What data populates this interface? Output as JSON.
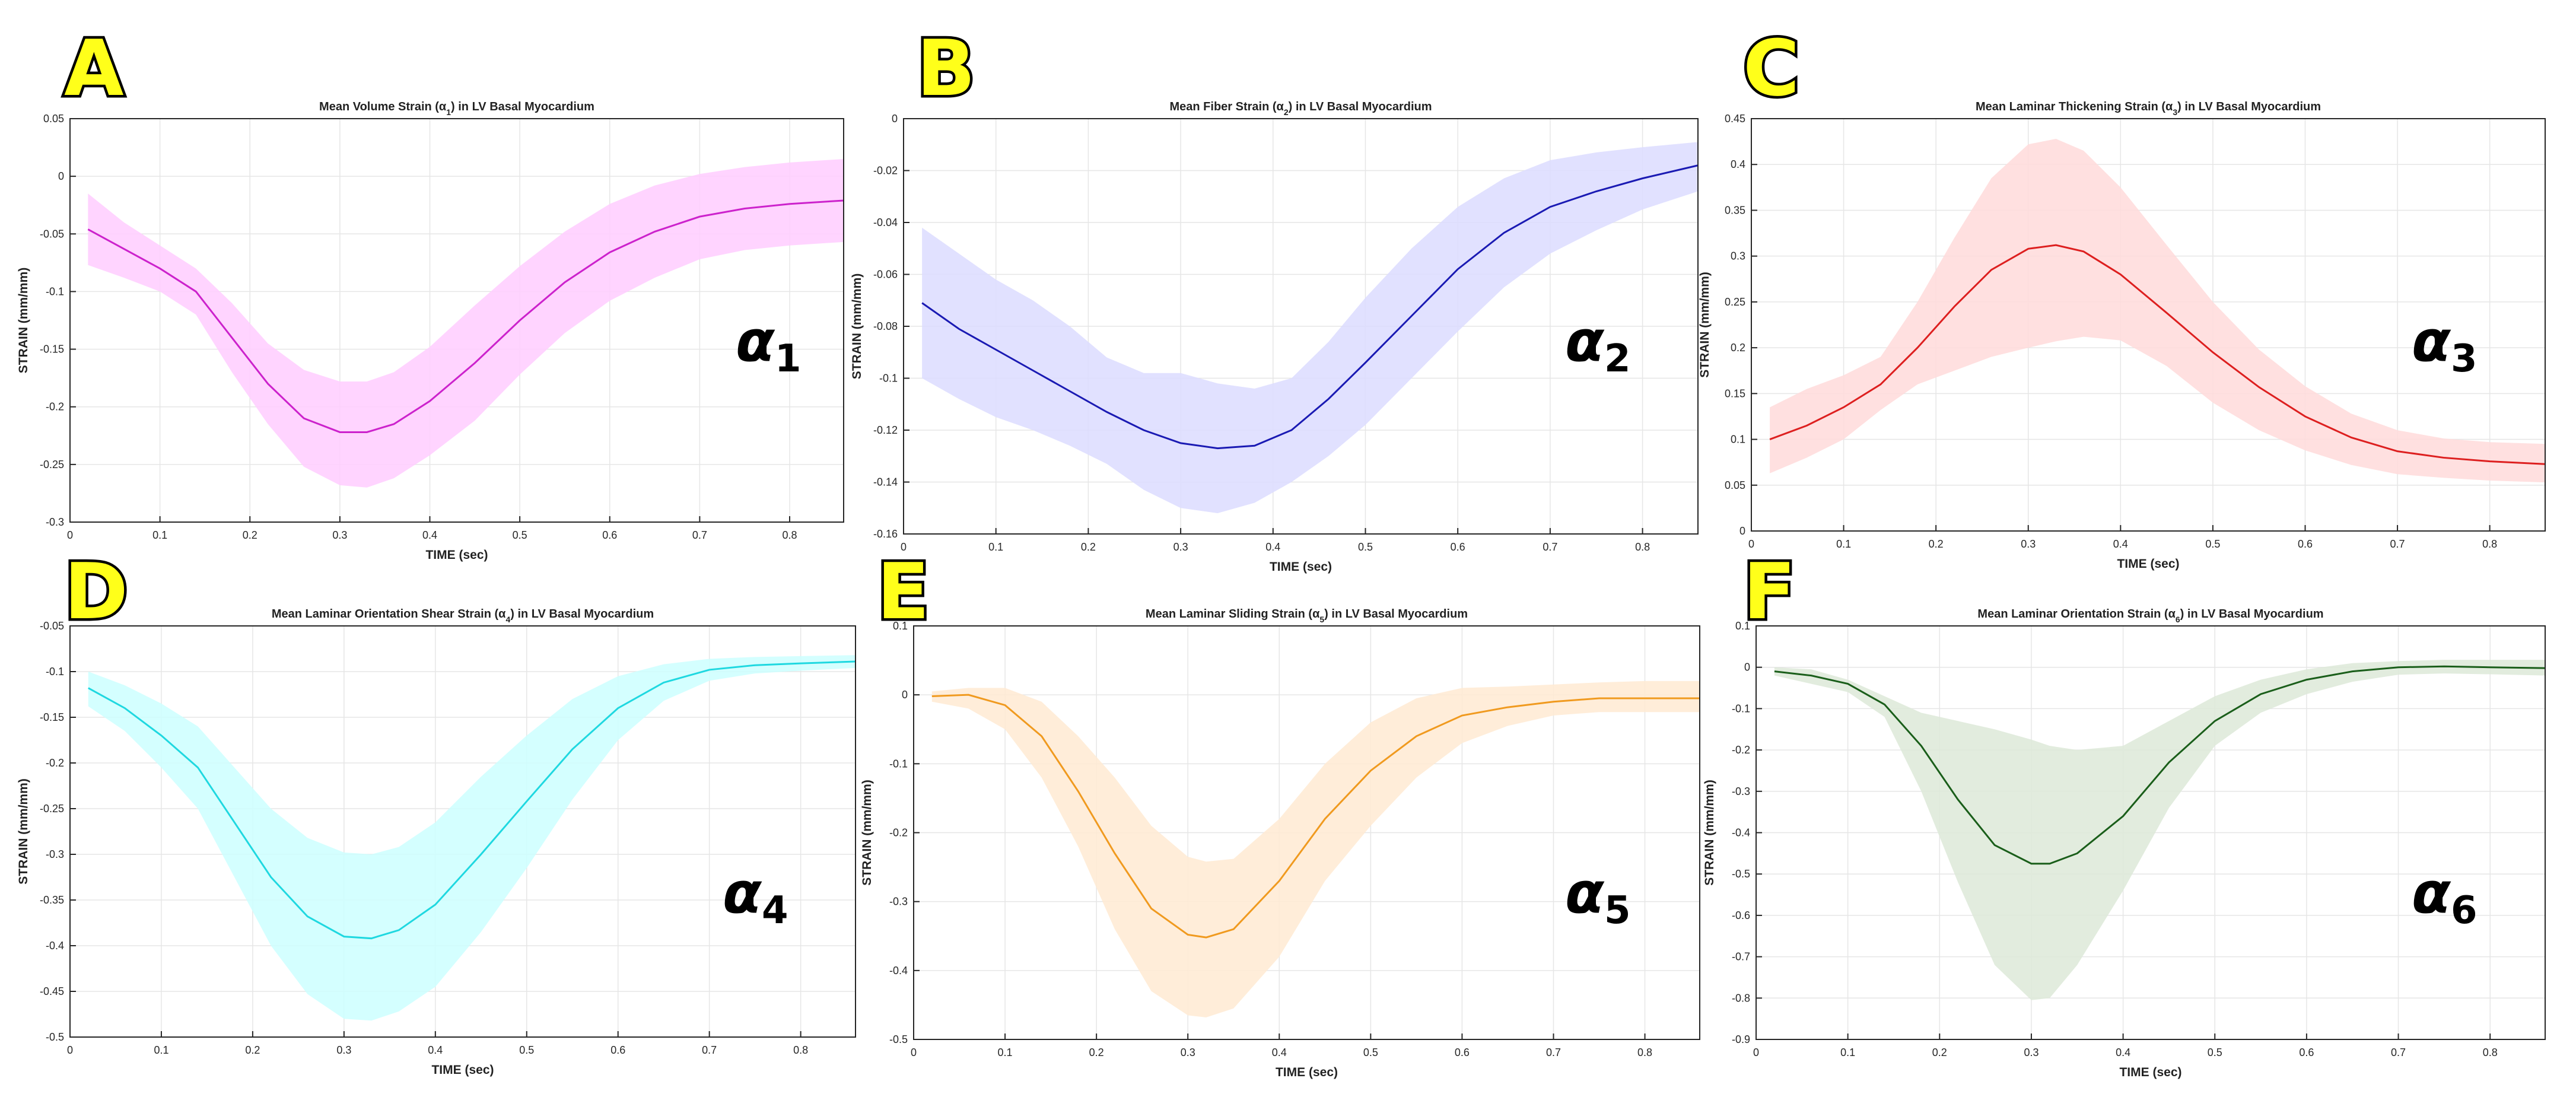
{
  "chart_data": [
    {
      "panel": "A",
      "type": "line",
      "title": "Mean Volume Strain (α1) in LV Basal Myocardium",
      "xlabel": "TIME (sec)",
      "ylabel": "STRAIN (mm/mm)",
      "xlim": [
        0,
        0.86
      ],
      "ylim": [
        -0.3,
        0.05
      ],
      "xticks": [
        0,
        0.1,
        0.2,
        0.3,
        0.4,
        0.5,
        0.6,
        0.7,
        0.8
      ],
      "yticks": [
        -0.3,
        -0.25,
        -0.2,
        -0.15,
        -0.1,
        -0.05,
        0,
        0.05
      ],
      "grid": true,
      "color": "#cc22cc",
      "band_color": "#ffccff",
      "annotation": "α1",
      "series": [
        {
          "x": [
            0.02,
            0.06,
            0.1,
            0.14,
            0.18,
            0.22,
            0.26,
            0.3,
            0.33,
            0.36,
            0.4,
            0.45,
            0.5,
            0.55,
            0.6,
            0.65,
            0.7,
            0.75,
            0.8,
            0.86
          ],
          "values": [
            -0.046,
            -0.063,
            -0.08,
            -0.1,
            -0.14,
            -0.18,
            -0.21,
            -0.222,
            -0.222,
            -0.215,
            -0.195,
            -0.162,
            -0.125,
            -0.092,
            -0.066,
            -0.048,
            -0.035,
            -0.028,
            -0.024,
            -0.021
          ],
          "upper": [
            -0.015,
            -0.04,
            -0.06,
            -0.08,
            -0.11,
            -0.145,
            -0.168,
            -0.178,
            -0.178,
            -0.17,
            -0.148,
            -0.112,
            -0.078,
            -0.048,
            -0.024,
            -0.008,
            0.002,
            0.008,
            0.012,
            0.015
          ],
          "lower": [
            -0.077,
            -0.088,
            -0.1,
            -0.12,
            -0.17,
            -0.215,
            -0.252,
            -0.268,
            -0.27,
            -0.262,
            -0.242,
            -0.212,
            -0.172,
            -0.136,
            -0.108,
            -0.088,
            -0.072,
            -0.064,
            -0.06,
            -0.057
          ]
        }
      ]
    },
    {
      "panel": "B",
      "type": "line",
      "title": "Mean Fiber Strain (α2) in LV Basal Myocardium",
      "xlabel": "TIME (sec)",
      "ylabel": "STRAIN (mm/mm)",
      "xlim": [
        0,
        0.86
      ],
      "ylim": [
        -0.16,
        0
      ],
      "xticks": [
        0,
        0.1,
        0.2,
        0.3,
        0.4,
        0.5,
        0.6,
        0.7,
        0.8
      ],
      "yticks": [
        -0.16,
        -0.14,
        -0.12,
        -0.1,
        -0.08,
        -0.06,
        -0.04,
        -0.02,
        0
      ],
      "grid": true,
      "color": "#1a1ab3",
      "band_color": "#dcdcff",
      "annotation": "α2",
      "series": [
        {
          "x": [
            0.02,
            0.06,
            0.1,
            0.14,
            0.18,
            0.22,
            0.26,
            0.3,
            0.34,
            0.38,
            0.42,
            0.46,
            0.5,
            0.55,
            0.6,
            0.65,
            0.7,
            0.75,
            0.8,
            0.86
          ],
          "values": [
            -0.071,
            -0.081,
            -0.089,
            -0.097,
            -0.105,
            -0.113,
            -0.12,
            -0.125,
            -0.127,
            -0.126,
            -0.12,
            -0.108,
            -0.094,
            -0.076,
            -0.058,
            -0.044,
            -0.034,
            -0.028,
            -0.023,
            -0.018
          ],
          "upper": [
            -0.042,
            -0.052,
            -0.062,
            -0.07,
            -0.08,
            -0.092,
            -0.098,
            -0.098,
            -0.102,
            -0.104,
            -0.1,
            -0.086,
            -0.069,
            -0.05,
            -0.034,
            -0.023,
            -0.016,
            -0.013,
            -0.011,
            -0.009
          ],
          "lower": [
            -0.1,
            -0.108,
            -0.115,
            -0.12,
            -0.126,
            -0.133,
            -0.143,
            -0.15,
            -0.152,
            -0.148,
            -0.14,
            -0.13,
            -0.118,
            -0.1,
            -0.082,
            -0.065,
            -0.052,
            -0.043,
            -0.035,
            -0.028
          ]
        }
      ]
    },
    {
      "panel": "C",
      "type": "line",
      "title": "Mean Laminar Thickening Strain (α3) in LV Basal Myocardium",
      "xlabel": "TIME (sec)",
      "ylabel": "STRAIN (mm/mm)",
      "xlim": [
        0,
        0.86
      ],
      "ylim": [
        0,
        0.45
      ],
      "xticks": [
        0,
        0.1,
        0.2,
        0.3,
        0.4,
        0.5,
        0.6,
        0.7,
        0.8
      ],
      "yticks": [
        0,
        0.05,
        0.1,
        0.15,
        0.2,
        0.25,
        0.3,
        0.35,
        0.4,
        0.45
      ],
      "grid": true,
      "color": "#dd1f1f",
      "band_color": "#ffdada",
      "annotation": "α3",
      "series": [
        {
          "x": [
            0.02,
            0.06,
            0.1,
            0.14,
            0.18,
            0.22,
            0.26,
            0.3,
            0.33,
            0.36,
            0.4,
            0.45,
            0.5,
            0.55,
            0.6,
            0.65,
            0.7,
            0.75,
            0.8,
            0.86
          ],
          "values": [
            0.1,
            0.115,
            0.135,
            0.16,
            0.2,
            0.245,
            0.285,
            0.308,
            0.312,
            0.305,
            0.28,
            0.238,
            0.195,
            0.157,
            0.125,
            0.102,
            0.087,
            0.08,
            0.076,
            0.073
          ],
          "upper": [
            0.135,
            0.155,
            0.17,
            0.19,
            0.25,
            0.32,
            0.385,
            0.422,
            0.428,
            0.415,
            0.375,
            0.312,
            0.25,
            0.198,
            0.158,
            0.128,
            0.11,
            0.101,
            0.097,
            0.095
          ],
          "lower": [
            0.063,
            0.08,
            0.1,
            0.132,
            0.16,
            0.175,
            0.19,
            0.2,
            0.207,
            0.212,
            0.208,
            0.18,
            0.14,
            0.11,
            0.088,
            0.072,
            0.062,
            0.058,
            0.055,
            0.053
          ]
        }
      ]
    },
    {
      "panel": "D",
      "type": "line",
      "title": "Mean Laminar Orientation Shear Strain (α4) in LV Basal Myocardium",
      "xlabel": "TIME (sec)",
      "ylabel": "STRAIN (mm/mm)",
      "xlim": [
        0,
        0.86
      ],
      "ylim": [
        -0.5,
        -0.05
      ],
      "xticks": [
        0,
        0.1,
        0.2,
        0.3,
        0.4,
        0.5,
        0.6,
        0.7,
        0.8
      ],
      "yticks": [
        -0.5,
        -0.45,
        -0.4,
        -0.35,
        -0.3,
        -0.25,
        -0.2,
        -0.15,
        -0.1,
        -0.05
      ],
      "grid": true,
      "color": "#1fd8e0",
      "band_color": "#ccffff",
      "annotation": "α4",
      "series": [
        {
          "x": [
            0.02,
            0.06,
            0.1,
            0.14,
            0.18,
            0.22,
            0.26,
            0.3,
            0.33,
            0.36,
            0.4,
            0.45,
            0.5,
            0.55,
            0.6,
            0.65,
            0.7,
            0.75,
            0.8,
            0.86
          ],
          "values": [
            -0.118,
            -0.14,
            -0.17,
            -0.205,
            -0.265,
            -0.325,
            -0.368,
            -0.39,
            -0.392,
            -0.383,
            -0.355,
            -0.3,
            -0.242,
            -0.185,
            -0.14,
            -0.112,
            -0.098,
            -0.093,
            -0.091,
            -0.089
          ],
          "upper": [
            -0.1,
            -0.115,
            -0.135,
            -0.16,
            -0.205,
            -0.25,
            -0.282,
            -0.298,
            -0.3,
            -0.292,
            -0.265,
            -0.215,
            -0.17,
            -0.13,
            -0.105,
            -0.092,
            -0.086,
            -0.084,
            -0.083,
            -0.082
          ],
          "lower": [
            -0.138,
            -0.165,
            -0.205,
            -0.25,
            -0.325,
            -0.4,
            -0.453,
            -0.48,
            -0.482,
            -0.472,
            -0.445,
            -0.385,
            -0.315,
            -0.24,
            -0.175,
            -0.132,
            -0.11,
            -0.102,
            -0.099,
            -0.096
          ]
        }
      ]
    },
    {
      "panel": "E",
      "type": "line",
      "title": "Mean Laminar Sliding Strain (α5) in LV Basal Myocardium",
      "xlabel": "TIME (sec)",
      "ylabel": "STRAIN (mm/mm)",
      "xlim": [
        0,
        0.86
      ],
      "ylim": [
        -0.5,
        0.1
      ],
      "xticks": [
        0,
        0.1,
        0.2,
        0.3,
        0.4,
        0.5,
        0.6,
        0.7,
        0.8
      ],
      "yticks": [
        -0.5,
        -0.4,
        -0.3,
        -0.2,
        -0.1,
        0,
        0.1
      ],
      "grid": true,
      "color": "#f09a1f",
      "band_color": "#ffead2",
      "annotation": "α5",
      "series": [
        {
          "x": [
            0.02,
            0.06,
            0.1,
            0.14,
            0.18,
            0.22,
            0.26,
            0.3,
            0.32,
            0.35,
            0.4,
            0.45,
            0.5,
            0.55,
            0.6,
            0.65,
            0.7,
            0.75,
            0.8,
            0.86
          ],
          "values": [
            -0.002,
            0.0,
            -0.015,
            -0.06,
            -0.14,
            -0.23,
            -0.31,
            -0.348,
            -0.352,
            -0.34,
            -0.27,
            -0.18,
            -0.11,
            -0.06,
            -0.03,
            -0.018,
            -0.01,
            -0.005,
            -0.005,
            -0.005
          ],
          "upper": [
            0.005,
            0.01,
            0.01,
            -0.01,
            -0.06,
            -0.12,
            -0.19,
            -0.235,
            -0.242,
            -0.238,
            -0.18,
            -0.1,
            -0.04,
            -0.005,
            0.01,
            0.012,
            0.015,
            0.018,
            0.02,
            0.02
          ],
          "lower": [
            -0.01,
            -0.02,
            -0.05,
            -0.12,
            -0.22,
            -0.34,
            -0.43,
            -0.465,
            -0.468,
            -0.455,
            -0.38,
            -0.27,
            -0.19,
            -0.12,
            -0.07,
            -0.045,
            -0.03,
            -0.025,
            -0.025,
            -0.025
          ]
        }
      ]
    },
    {
      "panel": "F",
      "type": "line",
      "title": "Mean Laminar Orientation Strain (α6) in LV Basal Myocardium",
      "xlabel": "TIME (sec)",
      "ylabel": "STRAIN (mm/mm)",
      "xlim": [
        0,
        0.86
      ],
      "ylim": [
        -0.9,
        0.1
      ],
      "xticks": [
        0,
        0.1,
        0.2,
        0.3,
        0.4,
        0.5,
        0.6,
        0.7,
        0.8
      ],
      "yticks": [
        -0.9,
        -0.8,
        -0.7,
        -0.6,
        -0.5,
        -0.4,
        -0.3,
        -0.2,
        -0.1,
        0,
        0.1
      ],
      "grid": true,
      "color": "#1a5e1a",
      "band_color": "#dde9d8",
      "annotation": "α6",
      "series": [
        {
          "x": [
            0.02,
            0.06,
            0.1,
            0.14,
            0.18,
            0.22,
            0.26,
            0.3,
            0.32,
            0.35,
            0.4,
            0.45,
            0.5,
            0.55,
            0.6,
            0.65,
            0.7,
            0.75,
            0.8,
            0.86
          ],
          "values": [
            -0.01,
            -0.02,
            -0.04,
            -0.09,
            -0.19,
            -0.32,
            -0.43,
            -0.475,
            -0.475,
            -0.45,
            -0.36,
            -0.23,
            -0.13,
            -0.065,
            -0.03,
            -0.01,
            0.0,
            0.002,
            0.0,
            -0.002
          ],
          "upper": [
            0.0,
            -0.005,
            -0.03,
            -0.07,
            -0.11,
            -0.13,
            -0.15,
            -0.175,
            -0.19,
            -0.2,
            -0.19,
            -0.13,
            -0.07,
            -0.03,
            -0.005,
            0.01,
            0.015,
            0.018,
            0.018,
            0.018
          ],
          "lower": [
            -0.02,
            -0.04,
            -0.06,
            -0.12,
            -0.3,
            -0.52,
            -0.72,
            -0.805,
            -0.8,
            -0.72,
            -0.54,
            -0.34,
            -0.19,
            -0.11,
            -0.065,
            -0.035,
            -0.018,
            -0.015,
            -0.017,
            -0.02
          ]
        }
      ]
    }
  ]
}
